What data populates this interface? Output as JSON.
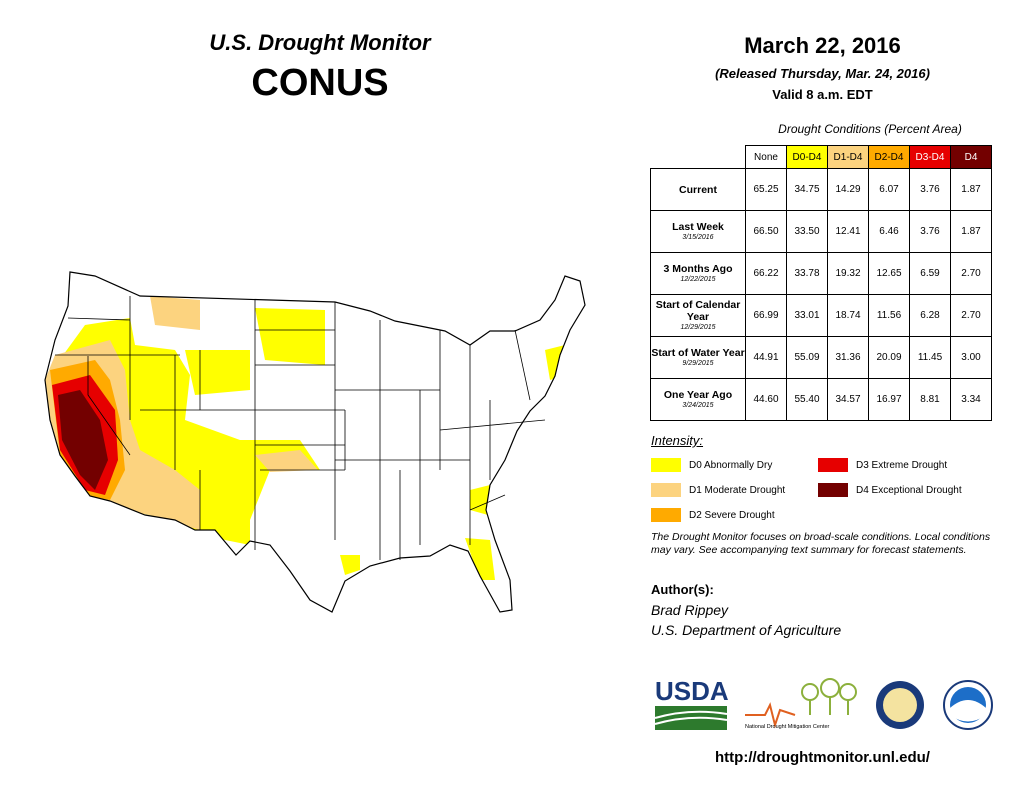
{
  "header": {
    "title": "U.S. Drought Monitor",
    "region": "CONUS"
  },
  "date": {
    "map_date": "March 22, 2016",
    "released": "(Released Thursday, Mar. 24, 2016)",
    "valid": "Valid 8 a.m. EDT"
  },
  "table": {
    "caption": "Drought Conditions (Percent Area)",
    "columns": [
      {
        "label": "None",
        "color": "#ffffff",
        "text_color": "#000000"
      },
      {
        "label": "D0-D4",
        "color": "#ffff00",
        "text_color": "#000000"
      },
      {
        "label": "D1-D4",
        "color": "#fcd37f",
        "text_color": "#000000"
      },
      {
        "label": "D2-D4",
        "color": "#ffaa00",
        "text_color": "#000000"
      },
      {
        "label": "D3-D4",
        "color": "#e60000",
        "text_color": "#ffffff"
      },
      {
        "label": "D4",
        "color": "#730000",
        "text_color": "#ffffff"
      }
    ],
    "rows": [
      {
        "label": "Current",
        "values": [
          "65.25",
          "34.75",
          "14.29",
          "6.07",
          "3.76",
          "1.87"
        ]
      },
      {
        "label": "Last Week",
        "date": "3/15/2016",
        "values": [
          "66.50",
          "33.50",
          "12.41",
          "6.46",
          "3.76",
          "1.87"
        ]
      },
      {
        "label": "3 Months Ago",
        "date": "12/22/2015",
        "values": [
          "66.22",
          "33.78",
          "19.32",
          "12.65",
          "6.59",
          "2.70"
        ]
      },
      {
        "label": "Start of Calendar Year",
        "date": "12/29/2015",
        "values": [
          "66.99",
          "33.01",
          "18.74",
          "11.56",
          "6.28",
          "2.70"
        ]
      },
      {
        "label": "Start of Water Year",
        "date": "9/29/2015",
        "values": [
          "44.91",
          "55.09",
          "31.36",
          "20.09",
          "11.45",
          "3.00"
        ]
      },
      {
        "label": "One Year Ago",
        "date": "3/24/2015",
        "values": [
          "44.60",
          "55.40",
          "34.57",
          "16.97",
          "8.81",
          "3.34"
        ]
      }
    ]
  },
  "legend": {
    "title": "Intensity:",
    "items": [
      {
        "label": "D0 Abnormally Dry",
        "color": "#ffff00"
      },
      {
        "label": "D1 Moderate Drought",
        "color": "#fcd37f"
      },
      {
        "label": "D2 Severe Drought",
        "color": "#ffaa00"
      },
      {
        "label": "D3 Extreme Drought",
        "color": "#e60000"
      },
      {
        "label": "D4 Exceptional Drought",
        "color": "#730000"
      }
    ]
  },
  "note": "The Drought Monitor focuses on broad-scale conditions. Local conditions may vary. See accompanying text summary for forecast statements.",
  "authors": {
    "heading": "Author(s):",
    "names": [
      "Brad Rippey",
      "U.S. Department of Agriculture"
    ]
  },
  "logos": {
    "usda": "USDA",
    "ndmc": "National Drought Mitigation Center"
  },
  "url": "http://droughtmonitor.unl.edu/"
}
